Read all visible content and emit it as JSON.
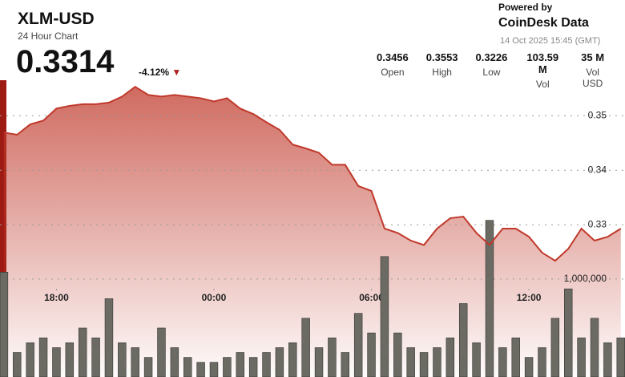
{
  "header": {
    "title": "XLM-USD",
    "subtitle": "24 Hour Chart",
    "price": "0.3314",
    "change": "-4.12%",
    "powered": "Powered by",
    "brand": "CoinDesk Data",
    "date": "14 Oct 2025 15:45 (GMT)"
  },
  "stats": [
    {
      "value": "0.3456",
      "label": "Open"
    },
    {
      "value": "0.3553",
      "label": "High"
    },
    {
      "value": "0.3226",
      "label": "Low"
    },
    {
      "value": "103.59 M",
      "label": "Vol"
    },
    {
      "value": "35 M",
      "label": "Vol USD"
    }
  ],
  "chart_data": {
    "type": "area",
    "color": "#c0392b",
    "x": [
      -8,
      -7.5,
      -7,
      -6.5,
      -6,
      -5.5,
      -5,
      -4.5,
      -4,
      -3.5,
      -3,
      -2.5,
      -2,
      -1.5,
      -1,
      -0.5,
      0,
      0.5,
      1,
      1.5,
      2,
      2.5,
      3,
      3.5,
      4,
      4.5,
      5,
      5.5,
      6,
      6.5,
      7,
      7.5,
      8,
      8.5,
      9,
      9.5,
      10,
      10.5,
      11,
      11.5,
      12,
      12.5,
      13,
      13.5,
      14,
      14.5,
      15,
      15.5
    ],
    "values": [
      0.3469,
      0.3465,
      0.3484,
      0.3491,
      0.3513,
      0.3518,
      0.3521,
      0.3521,
      0.3524,
      0.3535,
      0.3553,
      0.3538,
      0.3535,
      0.3538,
      0.3535,
      0.3532,
      0.3526,
      0.3532,
      0.3513,
      0.3503,
      0.3488,
      0.3474,
      0.3447,
      0.344,
      0.3432,
      0.341,
      0.341,
      0.3371,
      0.3362,
      0.3293,
      0.3285,
      0.3271,
      0.3263,
      0.3293,
      0.3312,
      0.3315,
      0.3285,
      0.3263,
      0.3293,
      0.3293,
      0.3278,
      0.3249,
      0.3234,
      0.3256,
      0.3293,
      0.3271,
      0.3278,
      0.3293
    ],
    "xlim": [
      -8.15,
      15.66
    ],
    "xticks": [
      {
        "value": -6,
        "label": "18:00"
      },
      {
        "value": 0,
        "label": "00:00"
      },
      {
        "value": 6,
        "label": "06:00"
      },
      {
        "value": 12,
        "label": "12:00"
      }
    ],
    "ylim": [
      0.3021,
      0.3712
    ],
    "yticks": [
      0.33,
      0.34,
      0.35
    ],
    "grid": true,
    "volume": {
      "type": "bar",
      "color": "#6b6b63",
      "values": [
        1070000,
        250000,
        350000,
        400000,
        300000,
        350000,
        500000,
        400000,
        800000,
        350000,
        300000,
        200000,
        500000,
        300000,
        200000,
        150000,
        150000,
        200000,
        250000,
        200000,
        250000,
        300000,
        350000,
        600000,
        300000,
        400000,
        250000,
        650000,
        450000,
        1230000,
        450000,
        300000,
        250000,
        300000,
        400000,
        750000,
        350000,
        1600000,
        300000,
        400000,
        200000,
        300000,
        600000,
        900000,
        400000,
        600000,
        350000,
        400000
      ],
      "ylim": [
        0,
        3850000
      ],
      "yticks": [
        {
          "value": 1000000,
          "label": "1,000,000"
        }
      ]
    }
  }
}
